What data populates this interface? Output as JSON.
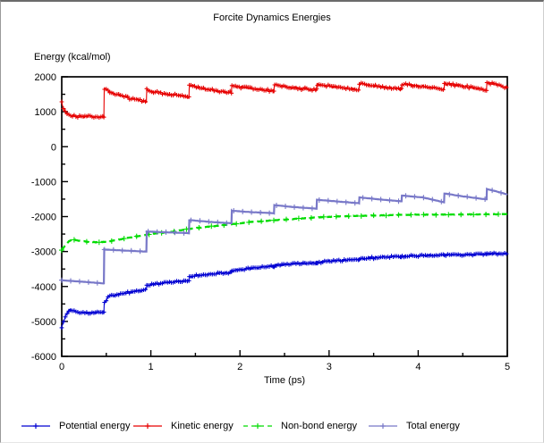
{
  "chart_data": {
    "type": "line",
    "title": "Forcite Dynamics Energies",
    "xlabel": "Time (ps)",
    "ylabel": "Energy (kcal/mol)",
    "xlim": [
      0,
      5
    ],
    "ylim": [
      -6000,
      2000
    ],
    "x_major_step": 1,
    "x_minor_step": 0.5,
    "y_major_step": 1000,
    "y_minor_step": 500,
    "grid": false,
    "legend_position": "bottom",
    "x_tick_labels": [
      "0",
      "1",
      "2",
      "3",
      "4",
      "5"
    ],
    "y_tick_labels": [
      "2000",
      "1000",
      "0",
      "-1000",
      "-2000",
      "-3000",
      "-4000",
      "-5000",
      "-6000"
    ],
    "axis_color": "#000000",
    "series": [
      {
        "name": "Potential energy",
        "color": "#0000d2",
        "style": "solid",
        "marker": "+",
        "marker_every": 2,
        "marker_size": 2.4,
        "width": 1.1,
        "noise": 34,
        "points": [
          [
            0,
            -5160
          ],
          [
            0.02,
            -5010
          ],
          [
            0.05,
            -4800
          ],
          [
            0.09,
            -4650
          ],
          [
            0.14,
            -4710
          ],
          [
            0.22,
            -4762
          ],
          [
            0.35,
            -4745
          ],
          [
            0.473,
            -4735
          ],
          [
            0.477,
            -4480
          ],
          [
            0.52,
            -4300
          ],
          [
            0.6,
            -4240
          ],
          [
            0.75,
            -4170
          ],
          [
            0.9,
            -4110
          ],
          [
            0.95,
            -4095
          ],
          [
            0.954,
            -3980
          ],
          [
            1.05,
            -3930
          ],
          [
            1.2,
            -3880
          ],
          [
            1.35,
            -3845
          ],
          [
            1.428,
            -3835
          ],
          [
            1.432,
            -3720
          ],
          [
            1.55,
            -3680
          ],
          [
            1.75,
            -3625
          ],
          [
            1.905,
            -3600
          ],
          [
            1.909,
            -3555
          ],
          [
            2.05,
            -3500
          ],
          [
            2.25,
            -3445
          ],
          [
            2.382,
            -3420
          ],
          [
            2.386,
            -3400
          ],
          [
            2.55,
            -3360
          ],
          [
            2.75,
            -3340
          ],
          [
            2.859,
            -3330
          ],
          [
            2.863,
            -3310
          ],
          [
            3.05,
            -3260
          ],
          [
            3.25,
            -3235
          ],
          [
            3.336,
            -3230
          ],
          [
            3.34,
            -3215
          ],
          [
            3.55,
            -3165
          ],
          [
            3.75,
            -3150
          ],
          [
            3.813,
            -3148
          ],
          [
            3.817,
            -3135
          ],
          [
            4.0,
            -3120
          ],
          [
            4.2,
            -3110
          ],
          [
            4.29,
            -3108
          ],
          [
            4.294,
            -3095
          ],
          [
            4.5,
            -3085
          ],
          [
            4.767,
            -3080
          ],
          [
            4.771,
            -3075
          ],
          [
            4.9,
            -3065
          ],
          [
            5,
            -3055
          ]
        ]
      },
      {
        "name": "Kinetic energy",
        "color": "#e60000",
        "style": "solid",
        "marker": "+",
        "marker_every": 2,
        "marker_size": 2.4,
        "width": 1.1,
        "noise": 40,
        "points": [
          [
            0,
            1270
          ],
          [
            0.02,
            1090
          ],
          [
            0.05,
            950
          ],
          [
            0.1,
            880
          ],
          [
            0.2,
            858
          ],
          [
            0.32,
            868
          ],
          [
            0.473,
            842
          ],
          [
            0.477,
            1672
          ],
          [
            0.55,
            1560
          ],
          [
            0.7,
            1430
          ],
          [
            0.85,
            1340
          ],
          [
            0.95,
            1292
          ],
          [
            0.954,
            1630
          ],
          [
            1.05,
            1560
          ],
          [
            1.2,
            1500
          ],
          [
            1.35,
            1450
          ],
          [
            1.428,
            1425
          ],
          [
            1.432,
            1758
          ],
          [
            1.55,
            1680
          ],
          [
            1.75,
            1590
          ],
          [
            1.905,
            1552
          ],
          [
            1.909,
            1742
          ],
          [
            2.05,
            1690
          ],
          [
            2.25,
            1630
          ],
          [
            2.382,
            1596
          ],
          [
            2.386,
            1778
          ],
          [
            2.55,
            1700
          ],
          [
            2.75,
            1650
          ],
          [
            2.859,
            1612
          ],
          [
            2.863,
            1782
          ],
          [
            3.0,
            1730
          ],
          [
            3.2,
            1670
          ],
          [
            3.336,
            1632
          ],
          [
            3.34,
            1798
          ],
          [
            3.5,
            1740
          ],
          [
            3.7,
            1680
          ],
          [
            3.813,
            1652
          ],
          [
            3.817,
            1795
          ],
          [
            4.0,
            1738
          ],
          [
            4.2,
            1672
          ],
          [
            4.29,
            1635
          ],
          [
            4.294,
            1808
          ],
          [
            4.45,
            1750
          ],
          [
            4.65,
            1670
          ],
          [
            4.767,
            1622
          ],
          [
            4.771,
            1845
          ],
          [
            4.85,
            1800
          ],
          [
            4.95,
            1720
          ],
          [
            5,
            1695
          ]
        ]
      },
      {
        "name": "Non-bond energy",
        "color": "#00dc00",
        "style": "dashed",
        "marker": "+",
        "marker_every": 14,
        "marker_size": 3,
        "width": 2.3,
        "noise": 9,
        "points": [
          [
            0,
            -2955
          ],
          [
            0.04,
            -2820
          ],
          [
            0.08,
            -2700
          ],
          [
            0.13,
            -2660
          ],
          [
            0.2,
            -2690
          ],
          [
            0.3,
            -2725
          ],
          [
            0.42,
            -2735
          ],
          [
            0.52,
            -2715
          ],
          [
            0.65,
            -2655
          ],
          [
            0.8,
            -2585
          ],
          [
            0.95,
            -2520
          ],
          [
            1.1,
            -2468
          ],
          [
            1.25,
            -2428
          ],
          [
            1.43,
            -2352
          ],
          [
            1.6,
            -2300
          ],
          [
            1.8,
            -2248
          ],
          [
            1.95,
            -2205
          ],
          [
            2.1,
            -2162
          ],
          [
            2.3,
            -2120
          ],
          [
            2.5,
            -2088
          ],
          [
            2.7,
            -2052
          ],
          [
            2.9,
            -2018
          ],
          [
            3.1,
            -1996
          ],
          [
            3.3,
            -1984
          ],
          [
            3.55,
            -1966
          ],
          [
            3.8,
            -1950
          ],
          [
            4.05,
            -1946
          ],
          [
            4.3,
            -1944
          ],
          [
            4.55,
            -1938
          ],
          [
            4.8,
            -1934
          ],
          [
            5,
            -1926
          ]
        ]
      },
      {
        "name": "Total energy",
        "color": "#7878c8",
        "style": "solid",
        "marker": "+",
        "marker_every": 10,
        "marker_size": 3,
        "width": 2.2,
        "noise": 5,
        "points": [
          [
            0,
            -3822
          ],
          [
            0.25,
            -3868
          ],
          [
            0.473,
            -3912
          ],
          [
            0.477,
            -2942
          ],
          [
            0.7,
            -2972
          ],
          [
            0.95,
            -3002
          ],
          [
            0.954,
            -2428
          ],
          [
            1.2,
            -2452
          ],
          [
            1.428,
            -2474
          ],
          [
            1.432,
            -2102
          ],
          [
            1.7,
            -2158
          ],
          [
            1.905,
            -2192
          ],
          [
            1.909,
            -1833
          ],
          [
            2.1,
            -1868
          ],
          [
            2.382,
            -1905
          ],
          [
            2.386,
            -1672
          ],
          [
            2.6,
            -1728
          ],
          [
            2.859,
            -1772
          ],
          [
            2.863,
            -1518
          ],
          [
            3.1,
            -1568
          ],
          [
            3.336,
            -1618
          ],
          [
            3.34,
            -1452
          ],
          [
            3.55,
            -1505
          ],
          [
            3.813,
            -1562
          ],
          [
            3.817,
            -1398
          ],
          [
            4.05,
            -1452
          ],
          [
            4.29,
            -1592
          ],
          [
            4.294,
            -1338
          ],
          [
            4.5,
            -1420
          ],
          [
            4.767,
            -1508
          ],
          [
            4.771,
            -1212
          ],
          [
            4.9,
            -1295
          ],
          [
            5,
            -1370
          ]
        ]
      }
    ]
  },
  "layout_note_values": {
    "jump_times_ps": [
      0.477,
      0.954,
      1.43,
      1.907,
      2.384,
      2.861,
      3.338,
      3.815,
      4.292,
      4.769
    ]
  }
}
